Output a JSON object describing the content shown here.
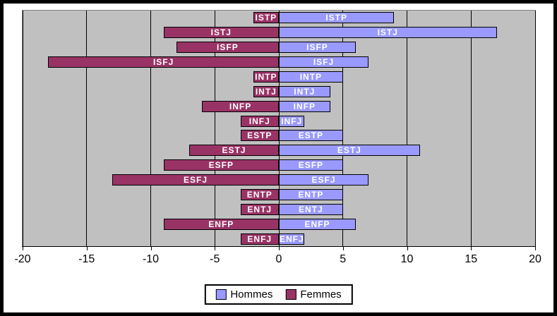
{
  "chart_data": {
    "type": "bar",
    "orientation": "horizontal-diverging",
    "title": "",
    "categories": [
      "ISTP",
      "ISTJ",
      "ISFP",
      "ISFJ",
      "INTP",
      "INTJ",
      "INFP",
      "INFJ",
      "ESTP",
      "ESTJ",
      "ESFP",
      "ESFJ",
      "ENTP",
      "ENTJ",
      "ENFP",
      "ENFJ"
    ],
    "series": [
      {
        "name": "Hommes",
        "color": "#9999FF",
        "values": [
          9,
          17,
          6,
          7,
          5,
          4,
          4,
          2,
          5,
          11,
          5,
          7,
          5,
          5,
          6,
          2
        ]
      },
      {
        "name": "Femmes",
        "color": "#993366",
        "values": [
          -2,
          -9,
          -8,
          -18,
          -2,
          -2,
          -6,
          -3,
          -3,
          -7,
          -9,
          -13,
          -3,
          -3,
          -9,
          -3
        ]
      }
    ],
    "xlim": [
      -20,
      20
    ],
    "x_ticks": [
      -20,
      -15,
      -10,
      -5,
      0,
      5,
      10,
      15,
      20
    ],
    "grid": true,
    "gridline_color": "#000000",
    "plot_background": "#C0C0C0",
    "bar_label_text_color": "#FFFFFF",
    "bar_labels": "category name shown in white inside each bar",
    "legend_position": "bottom",
    "ylabel": "",
    "xlabel": ""
  }
}
